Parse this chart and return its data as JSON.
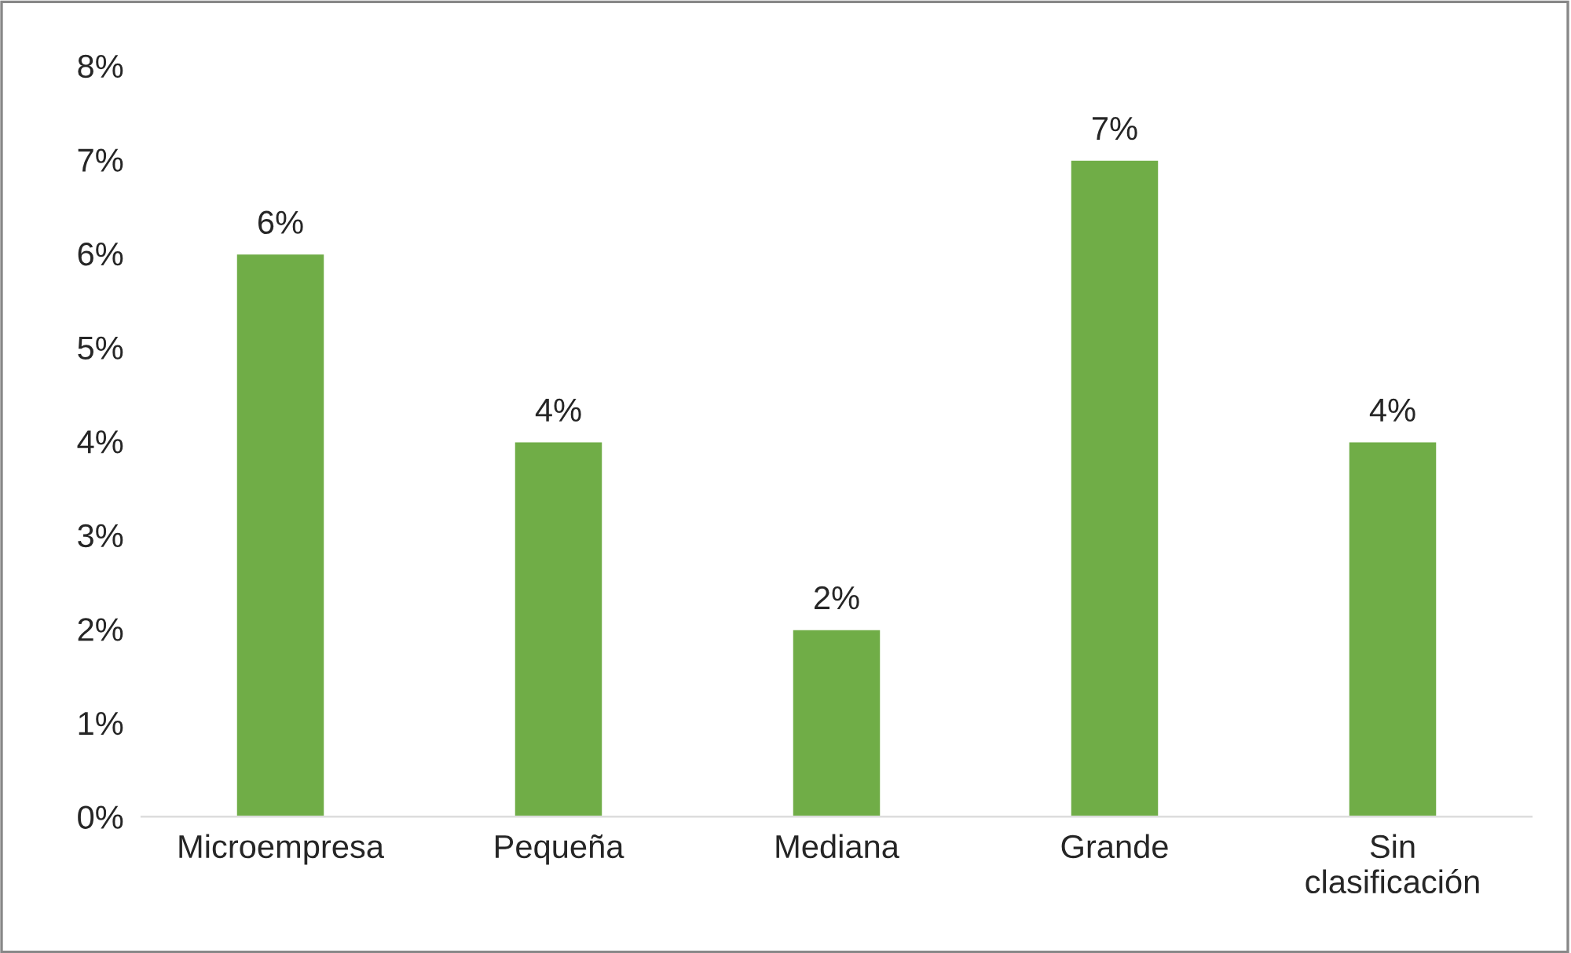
{
  "chart_data": {
    "type": "bar",
    "categories": [
      "Microempresa",
      "Pequeña",
      "Mediana",
      "Grande",
      "Sin\nclasificación"
    ],
    "values": [
      6,
      4,
      2,
      7,
      4
    ],
    "color": "#70ad47",
    "value_labels": [
      "6%",
      "4%",
      "2%",
      "7%",
      "4%"
    ],
    "ylim": [
      0,
      8
    ],
    "yticks": [
      {
        "value": 0,
        "label": "0%"
      },
      {
        "value": 1,
        "label": "1%"
      },
      {
        "value": 2,
        "label": "2%"
      },
      {
        "value": 3,
        "label": "3%"
      },
      {
        "value": 4,
        "label": "4%"
      },
      {
        "value": 5,
        "label": "5%"
      },
      {
        "value": 6,
        "label": "6%"
      },
      {
        "value": 7,
        "label": "7%"
      },
      {
        "value": 8,
        "label": "8%"
      }
    ],
    "grid": false,
    "legend": false
  }
}
